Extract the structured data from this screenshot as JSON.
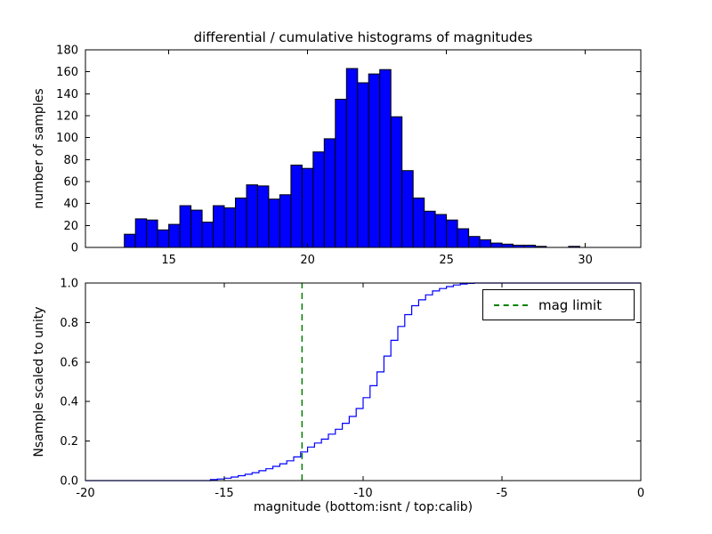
{
  "figure": {
    "title": "differential / cumulative histograms of magnitudes"
  },
  "chart_data": [
    {
      "type": "bar",
      "role": "differential-histogram",
      "title": "differential / cumulative histograms of magnitudes",
      "xlabel": "",
      "ylabel": "number of samples",
      "xlim": [
        12,
        32
      ],
      "ylim": [
        0,
        180
      ],
      "xticks": [
        "15",
        "20",
        "25",
        "30"
      ],
      "yticks": [
        "0",
        "20",
        "40",
        "60",
        "80",
        "100",
        "120",
        "140",
        "160",
        "180"
      ],
      "grid": false,
      "bar_color": "#0000ff",
      "bar_edge_color": "#000000",
      "bin_start": 13.4,
      "bin_width": 0.4,
      "values": [
        12,
        26,
        25,
        16,
        21,
        38,
        34,
        23,
        38,
        36,
        45,
        57,
        56,
        44,
        48,
        75,
        72,
        87,
        99,
        135,
        163,
        150,
        158,
        162,
        119,
        70,
        45,
        33,
        30,
        25,
        17,
        10,
        7,
        4,
        3,
        2,
        2,
        1,
        0,
        0,
        1
      ]
    },
    {
      "type": "line",
      "role": "cumulative-histogram",
      "title": "",
      "xlabel": "magnitude (bottom:isnt / top:calib)",
      "ylabel": "Nsample scaled to unity",
      "xlim": [
        -20,
        0
      ],
      "ylim": [
        0,
        1
      ],
      "xticks": [
        "-20",
        "-15",
        "-10",
        "-5",
        "0"
      ],
      "yticks": [
        "0.0",
        "0.2",
        "0.4",
        "0.6",
        "0.8",
        "1.0"
      ],
      "grid": false,
      "line_color": "#0000ff",
      "step": true,
      "points": [
        [
          -20,
          0
        ],
        [
          -15.5,
          0.005
        ],
        [
          -15.25,
          0.008
        ],
        [
          -15,
          0.012
        ],
        [
          -14.75,
          0.018
        ],
        [
          -14.5,
          0.025
        ],
        [
          -14.25,
          0.032
        ],
        [
          -14,
          0.04
        ],
        [
          -13.75,
          0.05
        ],
        [
          -13.5,
          0.06
        ],
        [
          -13.25,
          0.072
        ],
        [
          -13,
          0.085
        ],
        [
          -12.75,
          0.1
        ],
        [
          -12.5,
          0.12
        ],
        [
          -12.25,
          0.145
        ],
        [
          -12,
          0.17
        ],
        [
          -11.75,
          0.19
        ],
        [
          -11.5,
          0.21
        ],
        [
          -11.25,
          0.235
        ],
        [
          -11,
          0.26
        ],
        [
          -10.75,
          0.29
        ],
        [
          -10.5,
          0.325
        ],
        [
          -10.25,
          0.365
        ],
        [
          -10,
          0.42
        ],
        [
          -9.75,
          0.48
        ],
        [
          -9.5,
          0.55
        ],
        [
          -9.25,
          0.63
        ],
        [
          -9,
          0.71
        ],
        [
          -8.75,
          0.78
        ],
        [
          -8.5,
          0.84
        ],
        [
          -8.25,
          0.885
        ],
        [
          -8,
          0.915
        ],
        [
          -7.75,
          0.94
        ],
        [
          -7.5,
          0.96
        ],
        [
          -7.25,
          0.972
        ],
        [
          -7,
          0.982
        ],
        [
          -6.75,
          0.99
        ],
        [
          -6.5,
          0.995
        ],
        [
          -6.25,
          0.998
        ],
        [
          -6,
          1
        ],
        [
          0,
          1
        ]
      ],
      "vline": {
        "x": -12.2,
        "color": "#008000",
        "style": "dashed",
        "label": "mag limit"
      },
      "legend_position": "upper right"
    }
  ],
  "legend": {
    "entries": [
      {
        "label": "mag limit",
        "color": "#008000",
        "style": "dashed"
      }
    ]
  }
}
